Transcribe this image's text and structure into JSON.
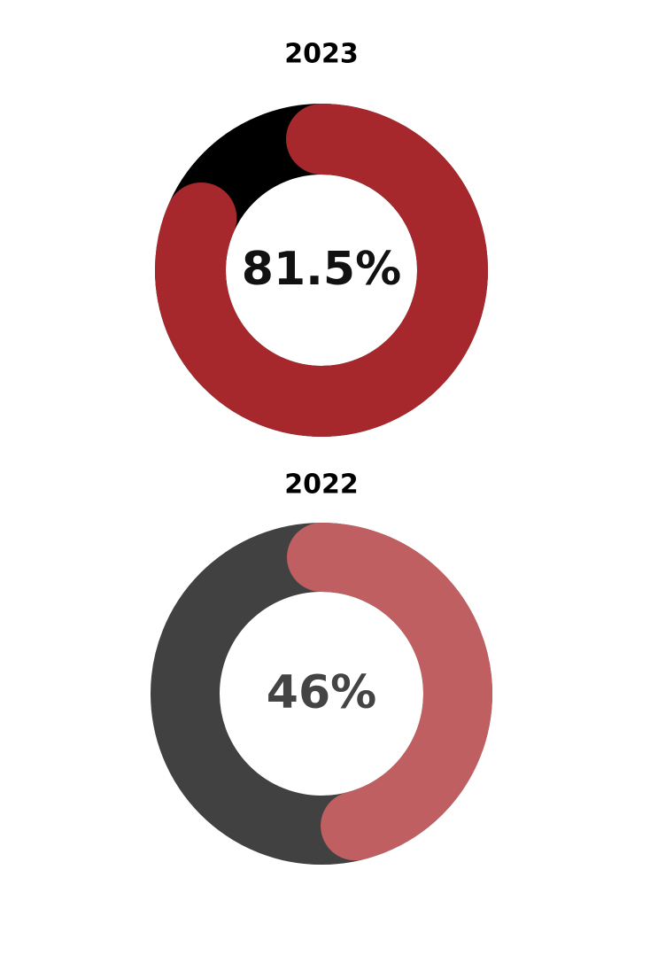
{
  "chart_data": [
    {
      "type": "donut",
      "title": "2023",
      "values": [
        81.5
      ],
      "value_labels": [
        "81.5%"
      ],
      "color": "#a7282c",
      "track_color": "#000000",
      "label_color": "#111111"
    },
    {
      "type": "donut",
      "title": "2022",
      "values": [
        46
      ],
      "value_labels": [
        "46%"
      ],
      "color": "#c05f61",
      "track_color": "#414141",
      "label_color": "#444444"
    }
  ]
}
